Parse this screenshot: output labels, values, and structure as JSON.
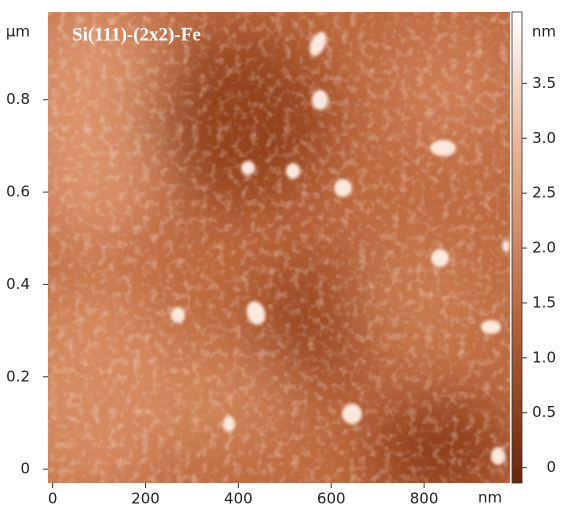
{
  "chart_data": {
    "type": "image",
    "title": "Si(111)-(2x2)-Fe",
    "x_unit": "nm",
    "y_unit": "µm",
    "colorbar_unit": "nm",
    "xlim": [
      -10,
      985
    ],
    "xticks": [
      0,
      200,
      400,
      600,
      800
    ],
    "ylim": [
      -0.03,
      0.99
    ],
    "yticks": [
      0,
      0.2,
      0.4,
      0.6,
      0.8
    ],
    "zlim": [
      -0.14,
      4.15
    ],
    "zticks": [
      0,
      0.5,
      {
        "value": 1,
        "label": "1.0"
      },
      1.5,
      {
        "value": 2,
        "label": "2.0"
      },
      2.5,
      {
        "value": 3,
        "label": "3.0"
      },
      3.5
    ]
  }
}
